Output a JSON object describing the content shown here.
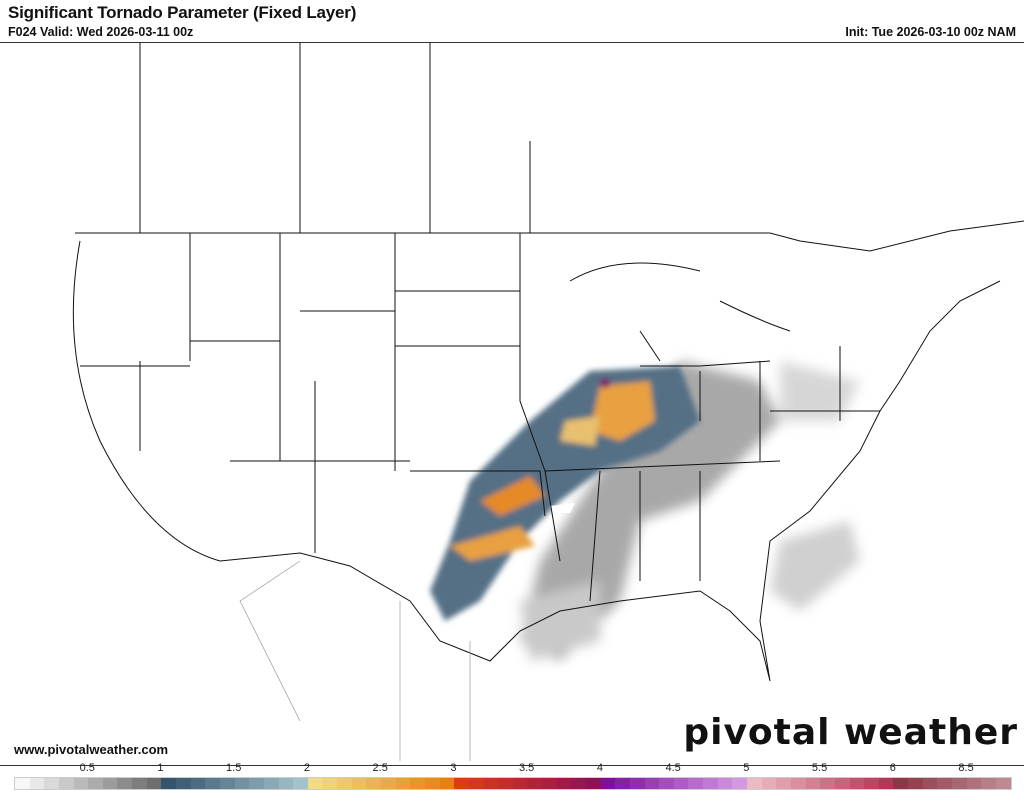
{
  "header": {
    "title": "Significant Tornado Parameter (Fixed Layer)",
    "valid": "F024 Valid: Wed 2026-03-11 00z",
    "init": "Init: Tue 2026-03-10 00z NAM"
  },
  "footer": {
    "website": "www.pivotalweather.com",
    "brand": "pivotal weather"
  },
  "colorbar": {
    "tick_labels": [
      "0.5",
      "1",
      "1.5",
      "2",
      "2.5",
      "3",
      "3.5",
      "4",
      "4.5",
      "5",
      "5.5",
      "6",
      "8.5"
    ],
    "tick_values": [
      0.5,
      1,
      1.5,
      2,
      2.5,
      3,
      3.5,
      4,
      4.5,
      5,
      5.5,
      6,
      8.5
    ],
    "anchors": [
      {
        "v": 0,
        "c": "#ffffff"
      },
      {
        "v": 1,
        "c": "#666666"
      },
      {
        "v": 1.01,
        "c": "#2f4f6a"
      },
      {
        "v": 2,
        "c": "#a9c8d0"
      },
      {
        "v": 2.01,
        "c": "#f0e08c"
      },
      {
        "v": 3,
        "c": "#e87a10"
      },
      {
        "v": 3.01,
        "c": "#dc4010"
      },
      {
        "v": 4,
        "c": "#8a0e5a"
      },
      {
        "v": 4.01,
        "c": "#7a0a9a"
      },
      {
        "v": 5,
        "c": "#d8a0e8"
      },
      {
        "v": 5.01,
        "c": "#f0c0c8"
      },
      {
        "v": 6,
        "c": "#b03050"
      },
      {
        "v": 6.01,
        "c": "#8a3040"
      },
      {
        "v": 10,
        "c": "#c09098"
      }
    ]
  }
}
